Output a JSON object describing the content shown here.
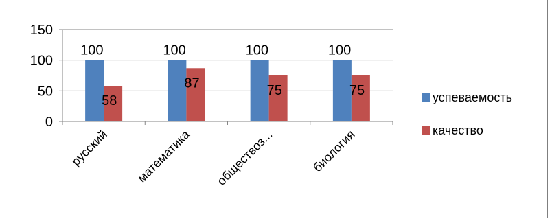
{
  "chart_data": {
    "type": "bar",
    "title": "",
    "categories": [
      "русский",
      "математика",
      "обществоз...",
      "биология"
    ],
    "series": [
      {
        "name": "успеваемость",
        "color": "#4F81BD",
        "values": [
          100,
          100,
          100,
          100
        ]
      },
      {
        "name": "качество",
        "color": "#C0504D",
        "values": [
          58,
          87,
          75,
          75
        ]
      }
    ],
    "y_ticks": [
      "0",
      "50",
      "100",
      "150"
    ],
    "ylim": [
      0,
      150
    ],
    "grid": true,
    "legend": "right"
  }
}
